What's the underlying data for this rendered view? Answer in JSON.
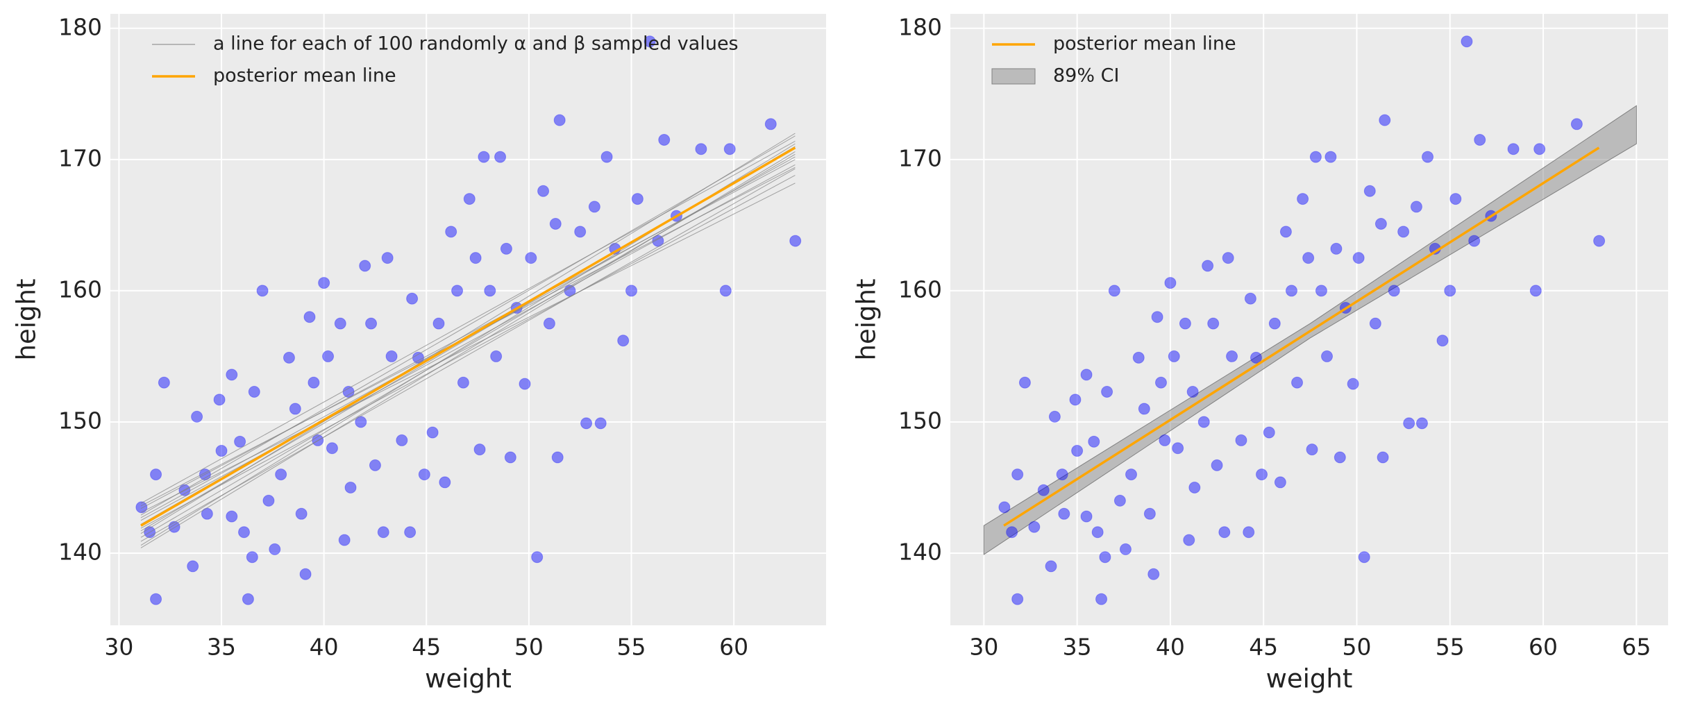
{
  "chart_data": [
    {
      "type": "scatter",
      "xlabel": "weight",
      "ylabel": "height",
      "xlim": [
        29.58,
        64.5
      ],
      "ylim": [
        134.5,
        181.1
      ],
      "xticks": [
        30,
        35,
        40,
        45,
        50,
        55,
        60
      ],
      "yticks": [
        140,
        150,
        160,
        170,
        180
      ],
      "grid": true,
      "legend": "upper left",
      "scatter": {
        "color": "#0000ff",
        "x": [
          31.1,
          31.5,
          31.8,
          31.8,
          32.2,
          32.7,
          33.2,
          33.6,
          33.8,
          34.2,
          34.3,
          34.9,
          35,
          35.5,
          35.5,
          35.9,
          36.1,
          36.3,
          36.5,
          36.6,
          37,
          37.3,
          37.6,
          37.9,
          38.3,
          38.6,
          38.9,
          39.1,
          39.3,
          39.5,
          39.7,
          40,
          40.2,
          40.4,
          40.8,
          41,
          41.2,
          41.3,
          41.8,
          42,
          42.3,
          42.5,
          42.9,
          43.1,
          43.3,
          43.8,
          44.2,
          44.3,
          44.6,
          44.9,
          45.3,
          45.6,
          45.9,
          46.2,
          46.5,
          46.8,
          47.1,
          47.4,
          47.6,
          47.8,
          48.1,
          48.4,
          48.6,
          48.9,
          49.1,
          49.4,
          49.8,
          50.1,
          50.4,
          50.7,
          51,
          51.3,
          51.4,
          51.5,
          52,
          52.5,
          52.8,
          53.2,
          53.5,
          53.8,
          54.2,
          54.6,
          55,
          55.3,
          55.9,
          56.3,
          56.6,
          57.2,
          58.4,
          59.6,
          59.8,
          61.8,
          63
        ],
        "values": [
          143.5,
          141.6,
          146,
          136.5,
          153,
          142,
          144.8,
          139,
          150.4,
          146,
          143,
          151.7,
          147.8,
          153.6,
          142.8,
          148.5,
          141.6,
          136.5,
          139.7,
          152.3,
          160,
          144,
          140.3,
          146,
          154.9,
          151,
          143,
          138.4,
          158,
          153,
          148.6,
          160.6,
          155,
          148,
          157.5,
          141,
          152.3,
          145,
          150,
          161.9,
          157.5,
          146.7,
          141.6,
          162.5,
          155,
          148.6,
          141.6,
          159.4,
          154.9,
          146,
          149.2,
          157.5,
          145.4,
          164.5,
          160,
          153,
          167,
          162.5,
          147.9,
          170.2,
          160,
          155,
          170.2,
          163.2,
          147.3,
          158.7,
          152.9,
          162.5,
          139.7,
          167.6,
          157.5,
          165.1,
          147.3,
          173,
          160,
          164.5,
          149.9,
          166.4,
          149.9,
          170.2,
          163.2,
          156.2,
          160,
          167,
          179,
          163.8,
          171.5,
          165.7,
          170.8,
          160,
          170.8,
          172.7,
          163.8
        ]
      },
      "sample_lines": {
        "name": "a line for each of 100 randomly α and β sampled values",
        "color": "#808080",
        "x": [
          31.07,
          62.99
        ],
        "lines": [
          [
            141.2,
            170.4
          ],
          [
            142.5,
            169.6
          ],
          [
            143.4,
            170.0
          ],
          [
            140.6,
            171.2
          ],
          [
            141.9,
            168.8
          ],
          [
            142.9,
            171.8
          ],
          [
            140.9,
            169.3
          ],
          [
            143.8,
            171.4
          ],
          [
            142.2,
            170.9
          ],
          [
            141.5,
            172.0
          ],
          [
            143.1,
            168.2
          ],
          [
            140.4,
            170.6
          ],
          [
            142.7,
            170.2
          ],
          [
            141.7,
            171.0
          ],
          [
            143.6,
            169.4
          ]
        ]
      },
      "series": [
        {
          "name": "posterior mean line",
          "color": "#ffa500",
          "x": [
            31.07,
            62.99
          ],
          "values": [
            142.1,
            170.9
          ]
        }
      ]
    },
    {
      "type": "scatter",
      "xlabel": "weight",
      "ylabel": "height",
      "xlim": [
        28.2,
        66.7
      ],
      "ylim": [
        134.5,
        181.1
      ],
      "xticks": [
        30,
        35,
        40,
        45,
        50,
        55,
        60,
        65
      ],
      "yticks": [
        140,
        150,
        160,
        170,
        180
      ],
      "grid": true,
      "legend": "upper left",
      "scatter": {
        "color": "#0000ff",
        "x": [
          31.1,
          31.5,
          31.8,
          31.8,
          32.2,
          32.7,
          33.2,
          33.6,
          33.8,
          34.2,
          34.3,
          34.9,
          35,
          35.5,
          35.5,
          35.9,
          36.1,
          36.3,
          36.5,
          36.6,
          37,
          37.3,
          37.6,
          37.9,
          38.3,
          38.6,
          38.9,
          39.1,
          39.3,
          39.5,
          39.7,
          40,
          40.2,
          40.4,
          40.8,
          41,
          41.2,
          41.3,
          41.8,
          42,
          42.3,
          42.5,
          42.9,
          43.1,
          43.3,
          43.8,
          44.2,
          44.3,
          44.6,
          44.9,
          45.3,
          45.6,
          45.9,
          46.2,
          46.5,
          46.8,
          47.1,
          47.4,
          47.6,
          47.8,
          48.1,
          48.4,
          48.6,
          48.9,
          49.1,
          49.4,
          49.8,
          50.1,
          50.4,
          50.7,
          51,
          51.3,
          51.4,
          51.5,
          52,
          52.5,
          52.8,
          53.2,
          53.5,
          53.8,
          54.2,
          54.6,
          55,
          55.3,
          55.9,
          56.3,
          56.6,
          57.2,
          58.4,
          59.6,
          59.8,
          61.8,
          63
        ],
        "values": [
          143.5,
          141.6,
          146,
          136.5,
          153,
          142,
          144.8,
          139,
          150.4,
          146,
          143,
          151.7,
          147.8,
          153.6,
          142.8,
          148.5,
          141.6,
          136.5,
          139.7,
          152.3,
          160,
          144,
          140.3,
          146,
          154.9,
          151,
          143,
          138.4,
          158,
          153,
          148.6,
          160.6,
          155,
          148,
          157.5,
          141,
          152.3,
          145,
          150,
          161.9,
          157.5,
          146.7,
          141.6,
          162.5,
          155,
          148.6,
          141.6,
          159.4,
          154.9,
          146,
          149.2,
          157.5,
          145.4,
          164.5,
          160,
          153,
          167,
          162.5,
          147.9,
          170.2,
          160,
          155,
          170.2,
          163.2,
          147.3,
          158.7,
          152.9,
          162.5,
          139.7,
          167.6,
          157.5,
          165.1,
          147.3,
          173,
          160,
          164.5,
          149.9,
          166.4,
          149.9,
          170.2,
          163.2,
          156.2,
          160,
          167,
          179,
          163.8,
          171.5,
          165.7,
          170.8,
          160,
          170.8,
          172.7,
          163.8
        ]
      },
      "series": [
        {
          "name": "posterior mean line",
          "color": "#ffa500",
          "x": [
            31.07,
            62.99
          ],
          "values": [
            142.1,
            170.9
          ]
        }
      ],
      "band": {
        "name": "89% CI",
        "color": "#808080",
        "x": [
          30,
          47.5,
          65
        ],
        "lower": [
          139.9,
          156.4,
          171.2
        ],
        "upper": [
          142.1,
          157.5,
          174.1
        ]
      }
    }
  ]
}
